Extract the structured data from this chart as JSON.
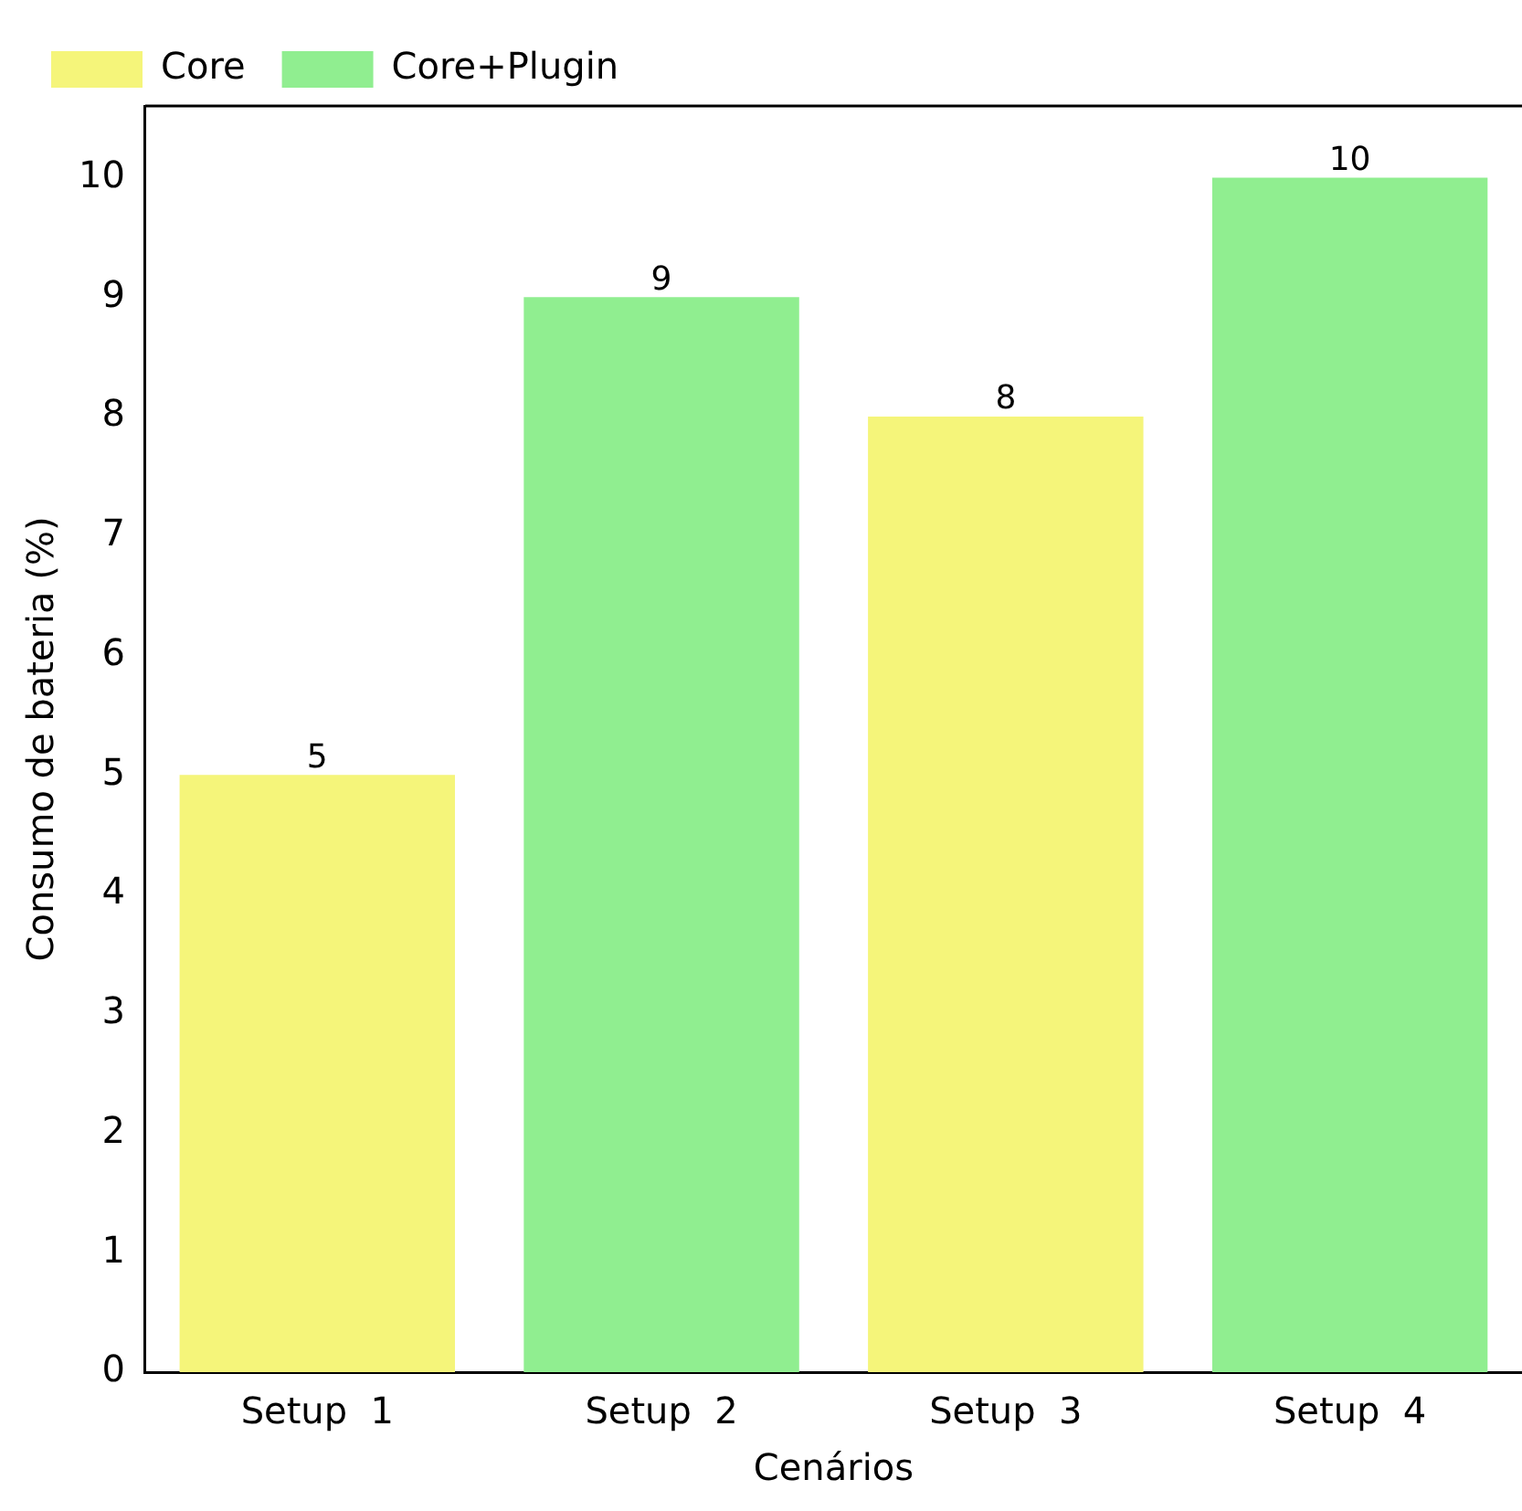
{
  "chart_data": {
    "type": "bar",
    "xlabel": "Cenários",
    "ylabel": "Consumo de bateria (%)",
    "categories": [
      "Setup  1",
      "Setup  2",
      "Setup  3",
      "Setup  4"
    ],
    "series": [
      {
        "name": "Core",
        "color": "#f5f57a",
        "values": [
          5,
          null,
          8,
          null
        ]
      },
      {
        "name": "Core+Plugin",
        "color": "#90ee90",
        "values": [
          null,
          9,
          null,
          10
        ]
      }
    ],
    "ylim": [
      0,
      10.6
    ],
    "yticks": [
      0,
      1,
      2,
      3,
      4,
      5,
      6,
      7,
      8,
      9,
      10
    ],
    "grid": false,
    "legend": "top left",
    "data_labels": true
  }
}
